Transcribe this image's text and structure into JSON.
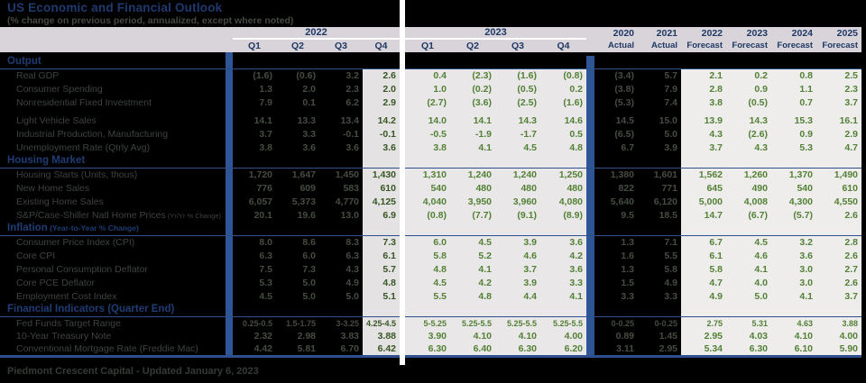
{
  "title": "US Economic and Financial Outlook",
  "subtitle": "(% change on previous period, annualized, except where noted)",
  "footer": "Piedmont Crescent Capital - Updated January 6, 2023",
  "colors": {
    "accent_blue": "#2e5595",
    "header_blue": "#1f3864",
    "forecast_green": "#538135",
    "actual_dark_green": "#375623",
    "dim_text": "#454d41",
    "band_background": "#d8d4da",
    "page_background": "#000000"
  },
  "header": {
    "groups": [
      {
        "label": "2022"
      },
      {
        "label": "2023"
      }
    ],
    "quarters": [
      "Q1",
      "Q2",
      "Q3",
      "Q4",
      "Q1",
      "Q2",
      "Q3",
      "Q4"
    ],
    "annuals": [
      {
        "year": "2020",
        "kind": "Actual"
      },
      {
        "year": "2021",
        "kind": "Actual"
      },
      {
        "year": "2022",
        "kind": "Forecast"
      },
      {
        "year": "2023",
        "kind": "Forecast"
      },
      {
        "year": "2024",
        "kind": "Forecast"
      },
      {
        "year": "2025",
        "kind": "Forecast"
      }
    ]
  },
  "sections": [
    {
      "title": "Output",
      "rows": [
        {
          "label": "Real GDP",
          "q": [
            "(1.6)",
            "(0.6)",
            "3.2",
            "2.6",
            "0.4",
            "(2.3)",
            "(1.6)",
            "(0.8)"
          ],
          "y": [
            "(3.4)",
            "5.7",
            "2.1",
            "0.2",
            "0.8",
            "2.5"
          ]
        },
        {
          "label": "Consumer Spending",
          "q": [
            "1.3",
            "2.0",
            "2.3",
            "2.0",
            "1.0",
            "(0.2)",
            "(0.5)",
            "0.2"
          ],
          "y": [
            "(3.8)",
            "7.9",
            "2.8",
            "0.9",
            "1.1",
            "2.3"
          ]
        },
        {
          "label": "Nonresidential Fixed Investment",
          "q": [
            "7.9",
            "0.1",
            "6.2",
            "2.9",
            "(2.7)",
            "(3.6)",
            "(2.5)",
            "(1.6)"
          ],
          "y": [
            "(5.3)",
            "7.4",
            "3.8",
            "(0.5)",
            "0.7",
            "3.7"
          ]
        },
        {
          "label": "Light Vehicle Sales",
          "spacer_before": true,
          "q": [
            "14.1",
            "13.3",
            "13.4",
            "14.2",
            "14.0",
            "14.1",
            "14.3",
            "14.6"
          ],
          "y": [
            "14.5",
            "15.0",
            "13.9",
            "14.3",
            "15.3",
            "16.1"
          ]
        },
        {
          "label": "Industrial Production, Manufacturing",
          "q": [
            "3.7",
            "3.3",
            "-0.1",
            "-0.1",
            "-0.5",
            "-1.9",
            "-1.7",
            "0.5"
          ],
          "y": [
            "(6.5)",
            "5.0",
            "4.3",
            "(2.6)",
            "0.9",
            "2.9"
          ]
        },
        {
          "label": "Unemployment Rate (Qtrly Avg)",
          "q": [
            "3.8",
            "3.6",
            "3.6",
            "3.6",
            "3.8",
            "4.1",
            "4.5",
            "4.8"
          ],
          "y": [
            "6.7",
            "3.9",
            "3.7",
            "4.3",
            "5.3",
            "4.7"
          ]
        }
      ]
    },
    {
      "title": "Housing Market",
      "rows": [
        {
          "label": "Housing Starts (Units, thous)",
          "q": [
            "1,720",
            "1,647",
            "1,450",
            "1,430",
            "1,310",
            "1,240",
            "1,240",
            "1,250"
          ],
          "y": [
            "1,380",
            "1,601",
            "1,562",
            "1,260",
            "1,370",
            "1,490"
          ]
        },
        {
          "label": "New Home Sales",
          "q": [
            "776",
            "609",
            "583",
            "610",
            "540",
            "480",
            "480",
            "480"
          ],
          "y": [
            "822",
            "771",
            "645",
            "490",
            "540",
            "610"
          ]
        },
        {
          "label": "Existing Home Sales",
          "q": [
            "6,057",
            "5,373",
            "4,770",
            "4,125",
            "4,040",
            "3,950",
            "3,960",
            "4,080"
          ],
          "y": [
            "5,640",
            "6,120",
            "5,000",
            "4,008",
            "4,300",
            "4,550"
          ]
        },
        {
          "label": "S&P/Case-Shiller Natl Home Prices",
          "label_small": "(Yr/Yr % Change)",
          "q": [
            "20.1",
            "19.6",
            "13.0",
            "6.9",
            "(0.8)",
            "(7.7)",
            "(9.1)",
            "(8.9)"
          ],
          "y": [
            "9.5",
            "18.5",
            "14.7",
            "(6.7)",
            "(5.7)",
            "2.6"
          ]
        }
      ]
    },
    {
      "title": "Inflation",
      "title_small": "(Year-to-Year % Change)",
      "rows": [
        {
          "label": "Consumer Price Index (CPI)",
          "q": [
            "8.0",
            "8.6",
            "8.3",
            "7.3",
            "6.0",
            "4.5",
            "3.9",
            "3.6"
          ],
          "y": [
            "1.3",
            "7.1",
            "6.7",
            "4.5",
            "3.2",
            "2.8"
          ]
        },
        {
          "label": "Core CPI",
          "q": [
            "6.3",
            "6.0",
            "6.3",
            "6.1",
            "5.8",
            "5.2",
            "4.6",
            "4.2"
          ],
          "y": [
            "1.6",
            "5.5",
            "6.1",
            "4.6",
            "3.6",
            "2.6"
          ]
        },
        {
          "label": "Personal Consumption Deflator",
          "q": [
            "7.5",
            "7.3",
            "4.3",
            "5.7",
            "4.8",
            "4.1",
            "3.7",
            "3.6"
          ],
          "y": [
            "1.3",
            "5.8",
            "5.8",
            "4.1",
            "3.0",
            "2.7"
          ]
        },
        {
          "label": "Core PCE Deflator",
          "q": [
            "5.3",
            "5.0",
            "4.9",
            "4.8",
            "4.5",
            "4.2",
            "3.9",
            "3.3"
          ],
          "y": [
            "1.5",
            "4.9",
            "4.7",
            "4.0",
            "3.0",
            "2.6"
          ]
        },
        {
          "label": "Employment Cost Index",
          "q": [
            "4.5",
            "5.0",
            "5.0",
            "5.1",
            "5.5",
            "4.8",
            "4.4",
            "4.1"
          ],
          "y": [
            "3.3",
            "3.3",
            "4.9",
            "5.0",
            "4.1",
            "3.7"
          ]
        }
      ]
    },
    {
      "title": "Financial Indicators (Quarter End)",
      "rows": [
        {
          "label": "Fed Funds Target Range",
          "small": true,
          "q": [
            "0.25-0.5",
            "1.5-1.75",
            "3-3.25",
            "4.25-4.5",
            "5-5.25",
            "5.25-5.5",
            "5.25-5.5",
            "5.25-5.5"
          ],
          "y": [
            "0-0.25",
            "0-0.25",
            "2.75",
            "5.31",
            "4.63",
            "3.88"
          ]
        },
        {
          "label": "10-Year Treasury Note",
          "q": [
            "2.32",
            "2.98",
            "3.83",
            "3.88",
            "3.90",
            "4.10",
            "4.10",
            "4.00"
          ],
          "y": [
            "0.89",
            "1.45",
            "2.95",
            "4.03",
            "4.10",
            "4.00"
          ]
        },
        {
          "label": "Conventional Mortgage Rate (Freddie Mac)",
          "q": [
            "4.42",
            "5.81",
            "6.70",
            "6.42",
            "6.30",
            "6.40",
            "6.30",
            "6.20"
          ],
          "y": [
            "3.11",
            "2.95",
            "5.34",
            "6.30",
            "6.10",
            "5.90"
          ]
        }
      ]
    }
  ]
}
